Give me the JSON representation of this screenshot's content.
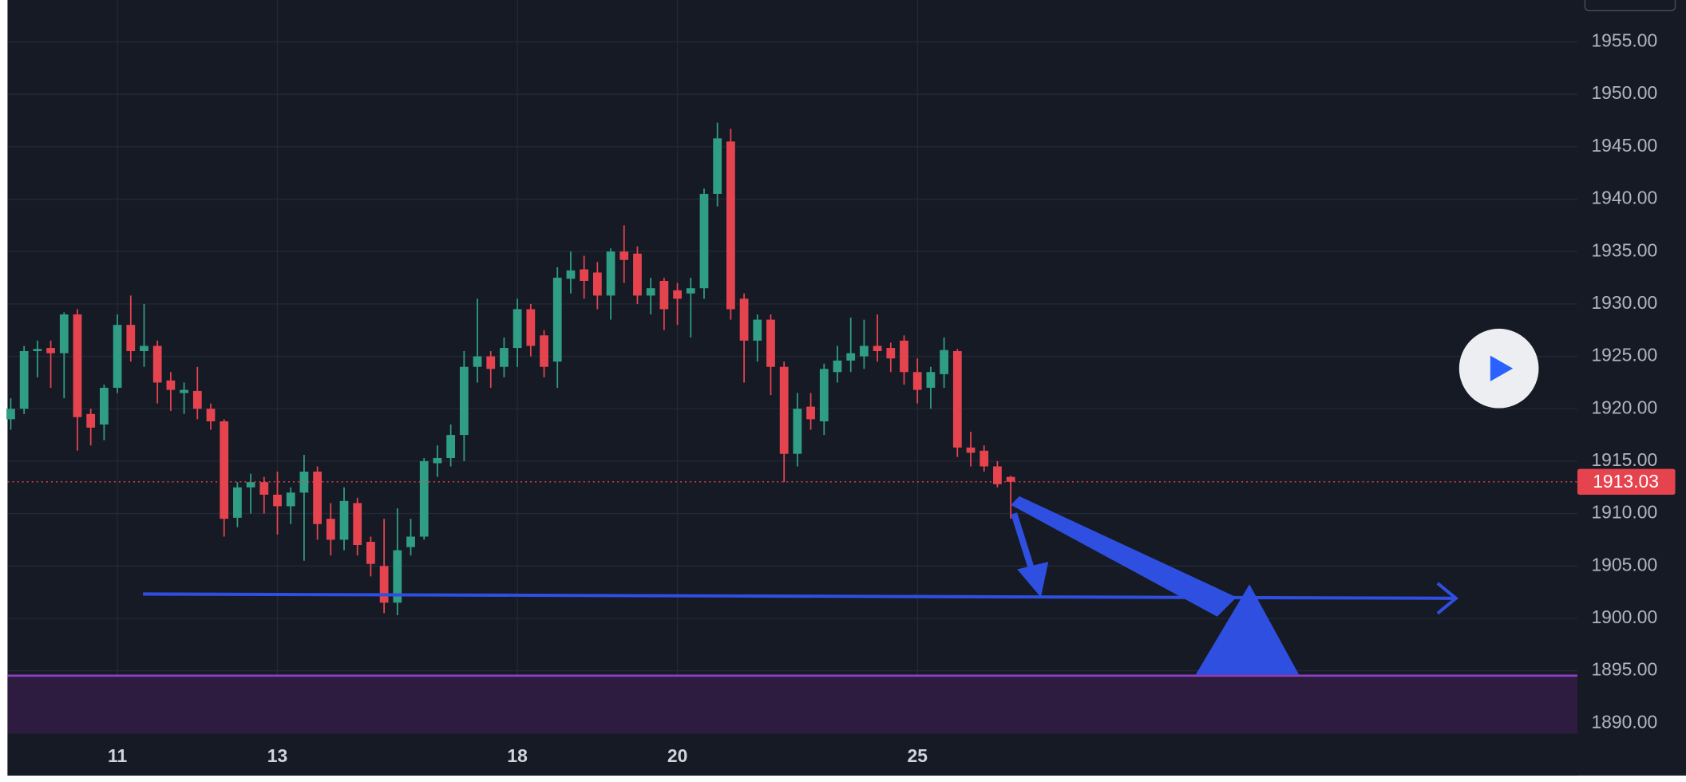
{
  "chart_data": {
    "type": "candlestick",
    "categories": [
      null,
      null,
      null,
      null,
      null,
      null,
      null,
      null,
      "11",
      null,
      null,
      null,
      null,
      null,
      null,
      null,
      null,
      null,
      null,
      null,
      "13",
      null,
      null,
      null,
      null,
      null,
      null,
      null,
      null,
      null,
      null,
      null,
      null,
      null,
      null,
      null,
      null,
      null,
      "18",
      null,
      null,
      null,
      null,
      null,
      null,
      null,
      null,
      null,
      null,
      null,
      "20",
      null,
      null,
      null,
      null,
      null,
      null,
      null,
      null,
      null,
      null,
      null,
      null,
      null,
      null,
      null,
      null,
      null,
      "25",
      null,
      null,
      null,
      null,
      null,
      null,
      null
    ],
    "open": [
      1919,
      1920,
      1925.5,
      1925.8,
      1925.3,
      1929,
      1919.5,
      1918.5,
      1922,
      1928,
      1925.5,
      1926,
      1922.7,
      1921.5,
      1921.7,
      1920,
      1918.8,
      1909.6,
      1912.5,
      1913,
      1911.8,
      1910.7,
      1912,
      1914,
      1909.5,
      1907.5,
      1911,
      1907.3,
      1905,
      1901.5,
      1906.8,
      1907.8,
      1914.8,
      1915.3,
      1917.5,
      1924,
      1925,
      1924,
      1925.8,
      1929.5,
      1927,
      1924.5,
      1932.4,
      1933.3,
      1933,
      1930.8,
      1935,
      1934.8,
      1930.8,
      1932.2,
      1931.3,
      1931,
      1931.5,
      1940.5,
      1945.5,
      1930.5,
      1926.5,
      1928.5,
      1924,
      1915.7,
      1920.2,
      1918.8,
      1923.5,
      1924.6,
      1925,
      1926,
      1925.8,
      1926.5,
      1923.5,
      1922,
      1923.3,
      1925.5,
      1916.3,
      1916,
      1914.5,
      1913.5
    ],
    "high": [
      1921,
      1926,
      1926.5,
      1926.5,
      1929.2,
      1929.5,
      1920,
      1922.3,
      1929,
      1930.8,
      1930,
      1926.5,
      1923.5,
      1922.5,
      1924,
      1920.5,
      1919,
      1913,
      1913.8,
      1913.5,
      1914,
      1912.5,
      1915.6,
      1914.5,
      1911,
      1912.5,
      1911.5,
      1907.8,
      1909.5,
      1910.5,
      1909.5,
      1915.3,
      1916.5,
      1918.5,
      1925.5,
      1930.5,
      1925.5,
      1926.8,
      1930.5,
      1930,
      1927.5,
      1933.5,
      1935,
      1934.6,
      1934,
      1935.3,
      1937.5,
      1935.5,
      1932.5,
      1932.5,
      1932,
      1932.5,
      1941,
      1947.3,
      1946.7,
      1931,
      1929,
      1929,
      1924.5,
      1921.5,
      1921.5,
      1924.3,
      1926,
      1928.7,
      1928.5,
      1929,
      1926.3,
      1927,
      1924.8,
      1924,
      1926.8,
      1925.7,
      1917.8,
      1916.5,
      1915,
      1913.6
    ],
    "low": [
      1918,
      1919.5,
      1923,
      1922,
      1921,
      1916,
      1916.5,
      1917,
      1921.5,
      1924.5,
      1924,
      1920.5,
      1919.8,
      1919.5,
      1919,
      1918,
      1907.8,
      1908.7,
      1910,
      1910,
      1908,
      1909,
      1905.5,
      1907.5,
      1906,
      1906.5,
      1906,
      1904,
      1900.5,
      1900.3,
      1906,
      1907.5,
      1913.5,
      1914.5,
      1915,
      1922.5,
      1922,
      1923,
      1924,
      1925,
      1923,
      1922,
      1931,
      1930.5,
      1929.5,
      1928.5,
      1932,
      1930,
      1929,
      1927.5,
      1928,
      1926.8,
      1930.5,
      1939.3,
      1928.5,
      1922.5,
      1924.5,
      1921.3,
      1913,
      1914.5,
      1918,
      1917.5,
      1922.5,
      1923.5,
      1923.8,
      1924.5,
      1923.5,
      1922.3,
      1920.5,
      1920,
      1922,
      1915.4,
      1914.5,
      1914,
      1912.5,
      1909.5
    ],
    "close": [
      1920,
      1925.5,
      1925.7,
      1925.3,
      1929,
      1919.2,
      1918.2,
      1922,
      1928,
      1925.5,
      1926,
      1922.5,
      1921.8,
      1921.8,
      1920,
      1918.8,
      1909.5,
      1912.5,
      1913,
      1911.8,
      1910.7,
      1912,
      1914,
      1909,
      1907.5,
      1911.2,
      1907,
      1905.2,
      1901.5,
      1906.5,
      1907.8,
      1915,
      1915.3,
      1917.5,
      1924,
      1925,
      1923.8,
      1925.8,
      1929.5,
      1926,
      1924,
      1932.5,
      1933.2,
      1932.2,
      1930.8,
      1935,
      1934.2,
      1930.8,
      1931.5,
      1929.5,
      1930.5,
      1931.5,
      1940.5,
      1945.8,
      1929.5,
      1926.5,
      1928.5,
      1924,
      1915.7,
      1920,
      1919,
      1923.8,
      1924.6,
      1925.3,
      1926,
      1925.5,
      1924.8,
      1923.5,
      1921.8,
      1923.5,
      1925.6,
      1916.3,
      1915.8,
      1914.5,
      1912.8,
      1913.03
    ],
    "up_color": "#2f9e84",
    "down_color": "#e5444f",
    "last_price": 1913.03,
    "ylim": [
      1889,
      1959
    ],
    "yticks": [
      {
        "value": 1890,
        "label": "1890.00"
      },
      {
        "value": 1895,
        "label": "1895.00"
      },
      {
        "value": 1900,
        "label": "1900.00"
      },
      {
        "value": 1905,
        "label": "1905.00"
      },
      {
        "value": 1910,
        "label": "1910.00"
      },
      {
        "value": 1915,
        "label": "1915.00"
      },
      {
        "value": 1920,
        "label": "1920.00"
      },
      {
        "value": 1925,
        "label": "1925.00"
      },
      {
        "value": 1930,
        "label": "1930.00"
      },
      {
        "value": 1935,
        "label": "1935.00"
      },
      {
        "value": 1940,
        "label": "1940.00"
      },
      {
        "value": 1945,
        "label": "1945.00"
      },
      {
        "value": 1950,
        "label": "1950.00"
      },
      {
        "value": 1955,
        "label": "1955.00"
      }
    ],
    "grid": true
  }
}
